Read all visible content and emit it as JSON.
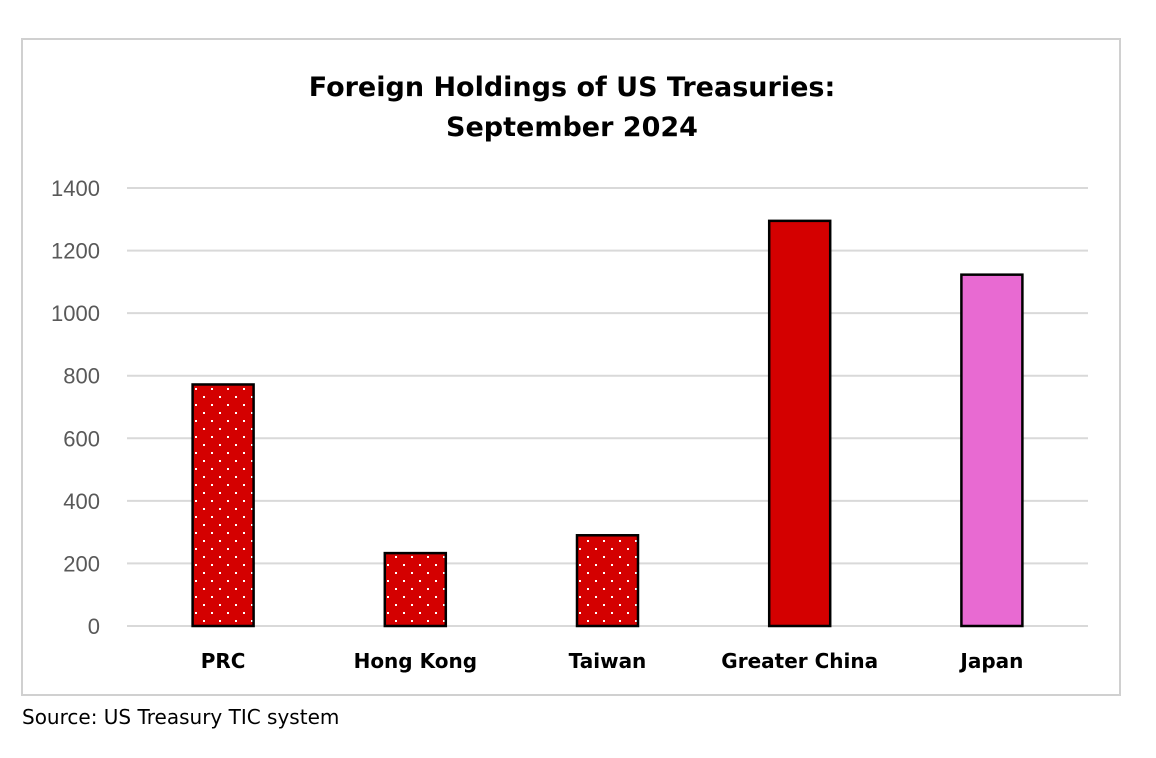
{
  "chart_data": {
    "type": "bar",
    "title": [
      "Foreign Holdings of US Treasuries:",
      "September 2024"
    ],
    "xlabel": "",
    "ylabel": "",
    "categories": [
      "PRC",
      "Hong Kong",
      "Taiwan",
      "Greater China",
      "Japan"
    ],
    "values": [
      772,
      233,
      290,
      1295,
      1123
    ],
    "bar_styles": [
      "dotted",
      "dotted",
      "dotted",
      "solid",
      "solid"
    ],
    "bar_colors": [
      "#d40000",
      "#d40000",
      "#d40000",
      "#d40000",
      "#e86ad2"
    ],
    "dot_color": "#ffffff",
    "outline_color": "#000000",
    "gridline_color": "#d9d9d9",
    "ylim": [
      0,
      1400
    ],
    "yticks": [
      0,
      200,
      400,
      600,
      800,
      1000,
      1200,
      1400
    ],
    "grid": true,
    "legend": "none"
  },
  "source_note": "Source: US Treasury TIC system"
}
